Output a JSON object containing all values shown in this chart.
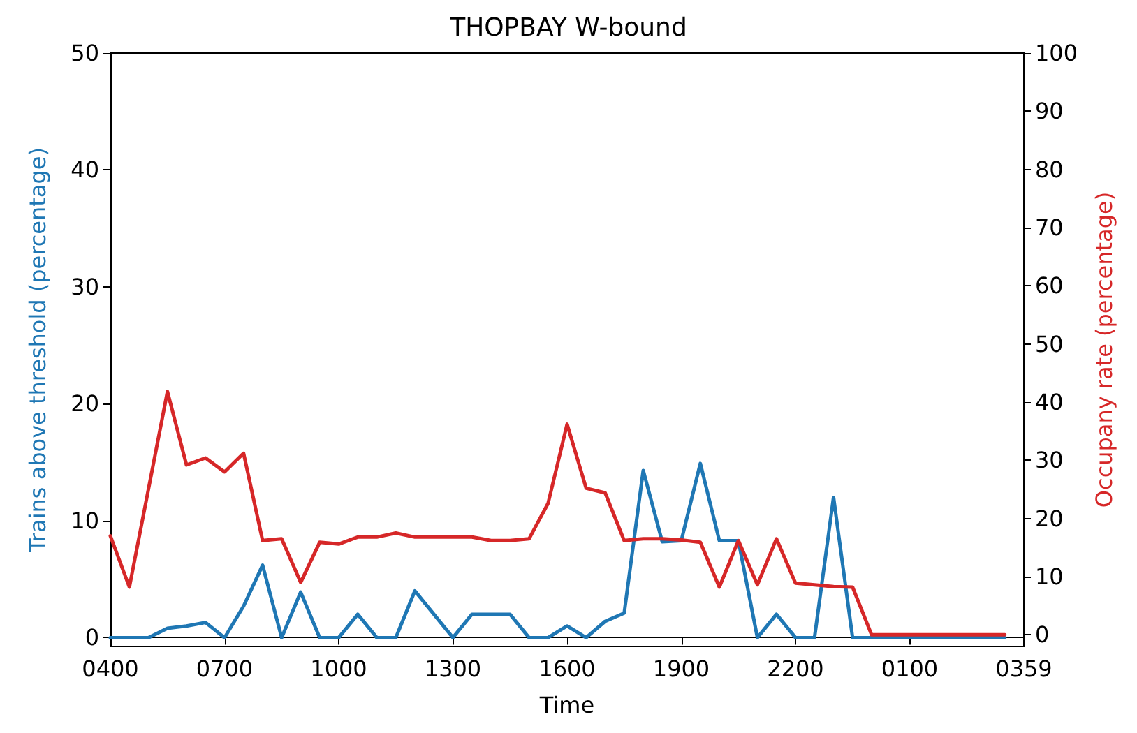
{
  "chart_data": {
    "type": "line",
    "title": "THOPBAY W-bound",
    "xlabel": "Time",
    "ylabel": "Trains above threshold (percentage)",
    "y2label": "Occupany rate (percentage)",
    "categories": [
      "0400",
      null,
      null,
      null,
      null,
      null,
      "0700",
      null,
      null,
      null,
      null,
      null,
      "1000",
      null,
      null,
      null,
      null,
      null,
      "1300",
      null,
      null,
      null,
      null,
      null,
      "1600",
      null,
      null,
      null,
      null,
      null,
      "1900",
      null,
      null,
      null,
      null,
      null,
      "2200",
      null,
      null,
      null,
      null,
      null,
      "0100",
      null,
      null,
      null,
      null,
      null,
      "0359"
    ],
    "series": [
      {
        "color": "#1f77b4",
        "values": [
          0,
          0,
          0,
          0.8,
          1,
          1.3,
          0,
          2.7,
          6.2,
          0,
          3.9,
          0,
          0,
          2,
          0,
          0,
          4,
          2,
          0,
          2,
          2,
          2,
          0,
          0,
          1,
          0,
          1.4,
          2.1,
          14.3,
          8.2,
          8.3,
          14.9,
          8.3,
          8.3,
          0,
          2,
          0,
          0,
          12,
          0,
          0,
          0,
          0,
          0,
          0,
          0,
          0,
          0,
          null
        ]
      },
      {
        "color": "#d62728",
        "axis": "y2",
        "values": [
          17,
          8.2,
          25,
          41.8,
          29.2,
          30.4,
          28,
          31.2,
          16.2,
          16.5,
          9,
          15.9,
          15.6,
          16.8,
          16.8,
          17.5,
          16.8,
          16.8,
          16.8,
          16.8,
          16.2,
          16.2,
          16.5,
          22.6,
          36.2,
          25.2,
          24.4,
          16.2,
          16.5,
          16.5,
          16.3,
          15.9,
          8.2,
          16.2,
          8.6,
          16.5,
          8.9,
          8.6,
          8.3,
          8.2,
          0,
          0,
          0,
          0,
          0,
          0,
          0,
          0,
          null
        ]
      }
    ],
    "ylim": [
      -0.75,
      50
    ],
    "yticks": [
      0,
      10,
      20,
      30,
      40,
      50
    ],
    "y2lim": [
      -2,
      100
    ],
    "y2ticks": [
      0,
      10,
      20,
      30,
      40,
      50,
      60,
      70,
      80,
      90,
      100
    ],
    "marker": "none",
    "line_style": "solid"
  }
}
